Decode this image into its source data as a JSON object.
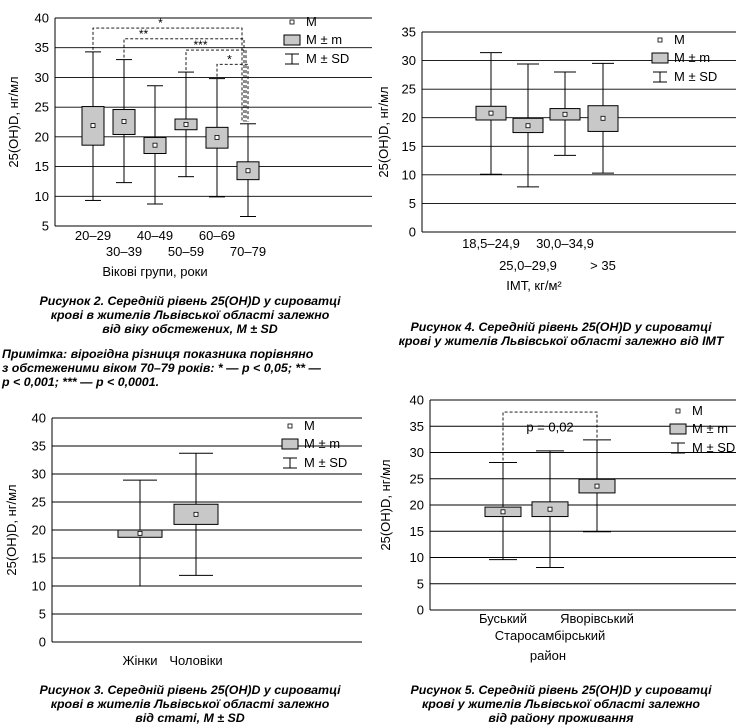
{
  "legend": {
    "mean": "M",
    "se": "M ± m",
    "sd": "M ± SD"
  },
  "chart_data": [
    {
      "id": "fig2",
      "type": "box",
      "ylabel": "25(OH)D, нг/мл",
      "xlabel": "Вікові групи, роки",
      "ylim": [
        5,
        40
      ],
      "yticks": [
        5,
        10,
        15,
        20,
        25,
        30,
        35,
        40
      ],
      "grid": true,
      "legend_position": "top-right",
      "categories": [
        "20–29",
        "30–39",
        "40–49",
        "50–59",
        "60–69",
        "70–79"
      ],
      "mean": [
        21.9,
        22.6,
        18.6,
        22.1,
        19.9,
        14.3
      ],
      "mean_pm_m_low": [
        18.6,
        20.4,
        17.2,
        21.2,
        18.1,
        12.8
      ],
      "mean_pm_m_high": [
        25.1,
        24.6,
        19.9,
        23.0,
        21.6,
        15.8
      ],
      "mean_pm_sd_low": [
        9.3,
        12.3,
        8.7,
        13.3,
        9.9,
        6.6
      ],
      "mean_pm_sd_high": [
        34.3,
        33.0,
        28.6,
        30.9,
        29.8,
        22.2
      ],
      "significance": [
        {
          "label": "*",
          "from": "20–29",
          "to": "70–79"
        },
        {
          "label": "**",
          "from": "30–39",
          "to": "70–79"
        },
        {
          "label": "***",
          "from": "50–59",
          "to": "70–79"
        },
        {
          "label": "*",
          "from": "60–69",
          "to": "70–79"
        }
      ]
    },
    {
      "id": "fig4",
      "type": "box",
      "ylabel": "25(OH)D, нг/мл",
      "xlabel": "ІМТ, кг/м²",
      "ylim": [
        0,
        35
      ],
      "yticks": [
        0,
        5,
        10,
        15,
        20,
        25,
        30,
        35
      ],
      "grid": true,
      "legend_position": "top-right",
      "categories": [
        "18,5–24,9",
        "25,0–29,9",
        "30,0–34,9",
        "> 35"
      ],
      "mean": [
        20.8,
        18.6,
        20.6,
        19.9
      ],
      "mean_pm_m_low": [
        19.6,
        17.4,
        19.6,
        17.6
      ],
      "mean_pm_m_high": [
        22.0,
        19.9,
        21.6,
        22.1
      ],
      "mean_pm_sd_low": [
        10.1,
        7.9,
        13.4,
        10.3
      ],
      "mean_pm_sd_high": [
        31.4,
        29.4,
        28.0,
        29.5
      ]
    },
    {
      "id": "fig3",
      "type": "box",
      "ylabel": "25(OH)D, нг/мл",
      "xlabel": "",
      "ylim": [
        0,
        40
      ],
      "yticks": [
        0,
        5,
        10,
        15,
        20,
        25,
        30,
        35,
        40
      ],
      "grid": true,
      "legend_position": "top-right",
      "categories": [
        "Жінки",
        "Чоловіки"
      ],
      "mean": [
        19.4,
        22.8
      ],
      "mean_pm_m_low": [
        18.7,
        21.0
      ],
      "mean_pm_m_high": [
        20.0,
        24.6
      ],
      "mean_pm_sd_low": [
        10.0,
        11.9
      ],
      "mean_pm_sd_high": [
        28.9,
        33.7
      ]
    },
    {
      "id": "fig5",
      "type": "box",
      "ylabel": "25(OH)D, нг/мл",
      "xlabel": "район",
      "ylim": [
        0,
        40
      ],
      "yticks": [
        0,
        5,
        10,
        15,
        20,
        25,
        30,
        35,
        40
      ],
      "grid": true,
      "legend_position": "top-right",
      "categories": [
        "Буський",
        "Старосамбірський",
        "Яворівський"
      ],
      "mean": [
        18.7,
        19.2,
        23.6
      ],
      "mean_pm_m_low": [
        17.8,
        17.8,
        22.3
      ],
      "mean_pm_m_high": [
        19.6,
        20.6,
        24.9
      ],
      "mean_pm_sd_low": [
        9.6,
        8.1,
        14.9
      ],
      "mean_pm_sd_high": [
        28.1,
        30.3,
        32.4
      ],
      "significance": [
        {
          "label": "p = 0,02",
          "from": "Буський",
          "to": "Яворівський"
        }
      ]
    }
  ],
  "captions": {
    "fig2": [
      "Рисунок 2. Середній рівень 25(OH)D у сироватці",
      "крові в жителів Львівської області залежно",
      "від віку обстежених, M ± SD"
    ],
    "fig2_note": [
      "Примітка: вірогідна різниця показника порівняно",
      "з обстеженими віком 70–79 років: * — р < 0,05; ** —",
      "р < 0,001; *** — р < 0,0001."
    ],
    "fig4": [
      "Рисунок 4. Середній рівень 25(OH)D у сироватці",
      "крові у жителів Львівської області залежно від ІМТ"
    ],
    "fig3": [
      "Рисунок 3. Середній рівень 25(OH)D у сироватці",
      "крові в жителів Львівської області залежно",
      "від статі, M ± SD"
    ],
    "fig5": [
      "Рисунок 5. Середній рівень 25(OH)D у сироватці",
      "крові у жителів Львівської області залежно",
      "від району проживання"
    ]
  }
}
